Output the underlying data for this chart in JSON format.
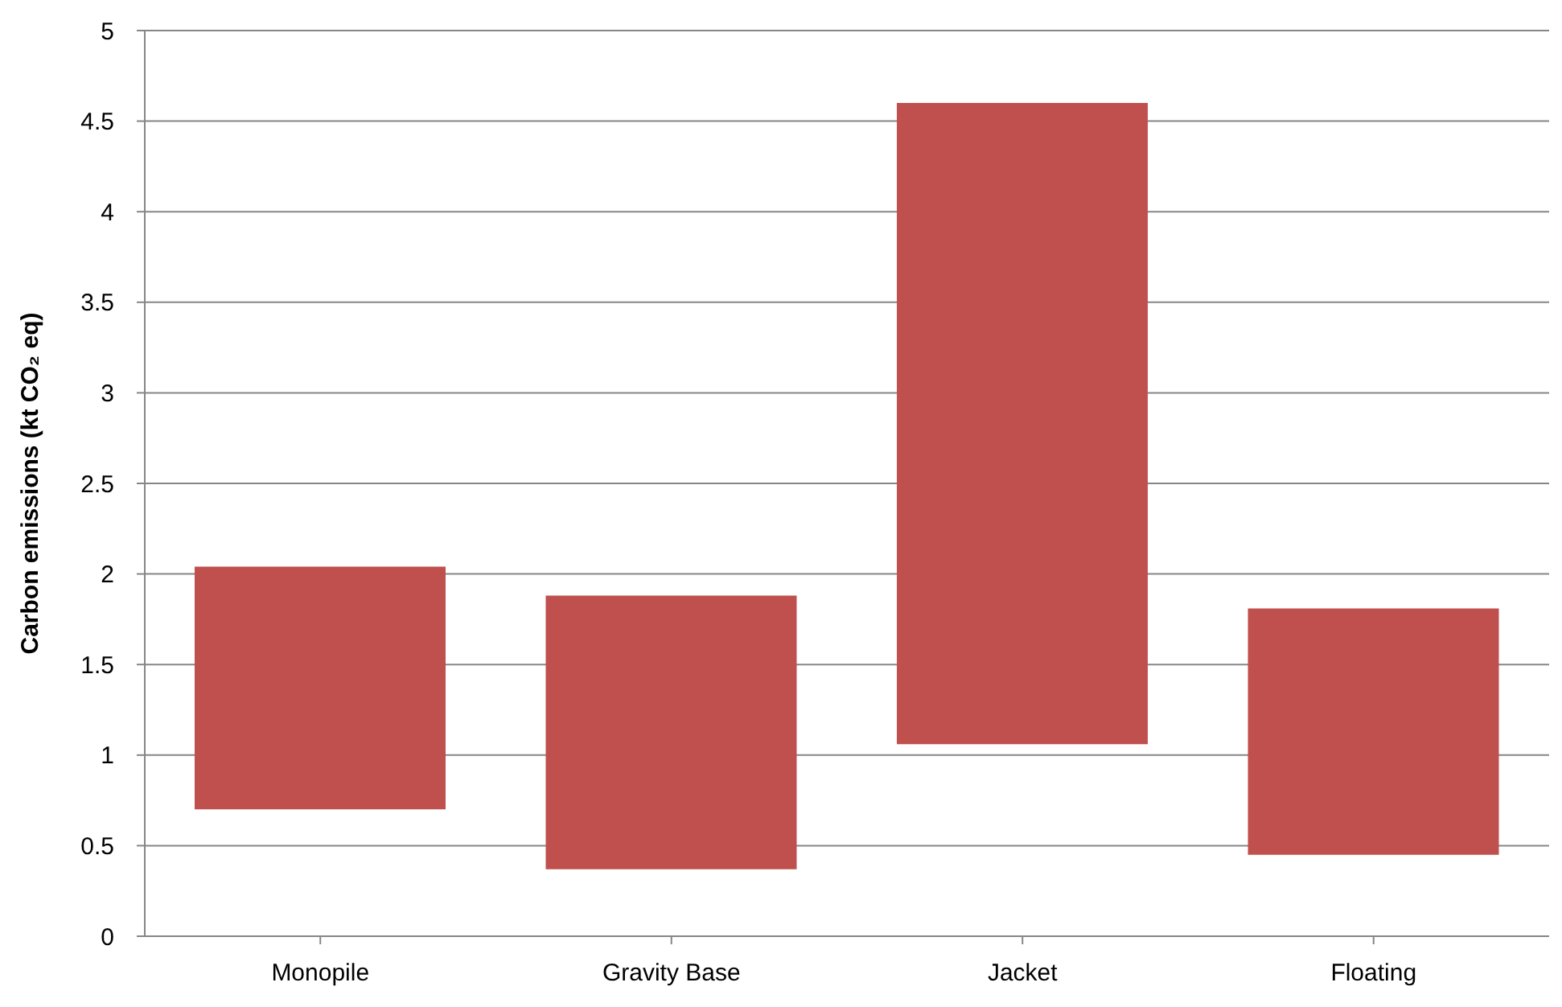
{
  "chart_data": {
    "type": "bar",
    "ylabel": "Carbon emissions (kt CO₂ eq)",
    "categories": [
      "Monopile",
      "Gravity Base",
      "Jacket",
      "Floating"
    ],
    "base": [
      0.7,
      0.37,
      1.06,
      0.45
    ],
    "values": [
      1.34,
      1.51,
      3.54,
      1.36
    ],
    "color": "#c0504d",
    "ylim": [
      0,
      5
    ],
    "yticks": [
      0,
      0.5,
      1,
      1.5,
      2,
      2.5,
      3,
      3.5,
      4,
      4.5,
      5
    ],
    "grid": "y"
  }
}
